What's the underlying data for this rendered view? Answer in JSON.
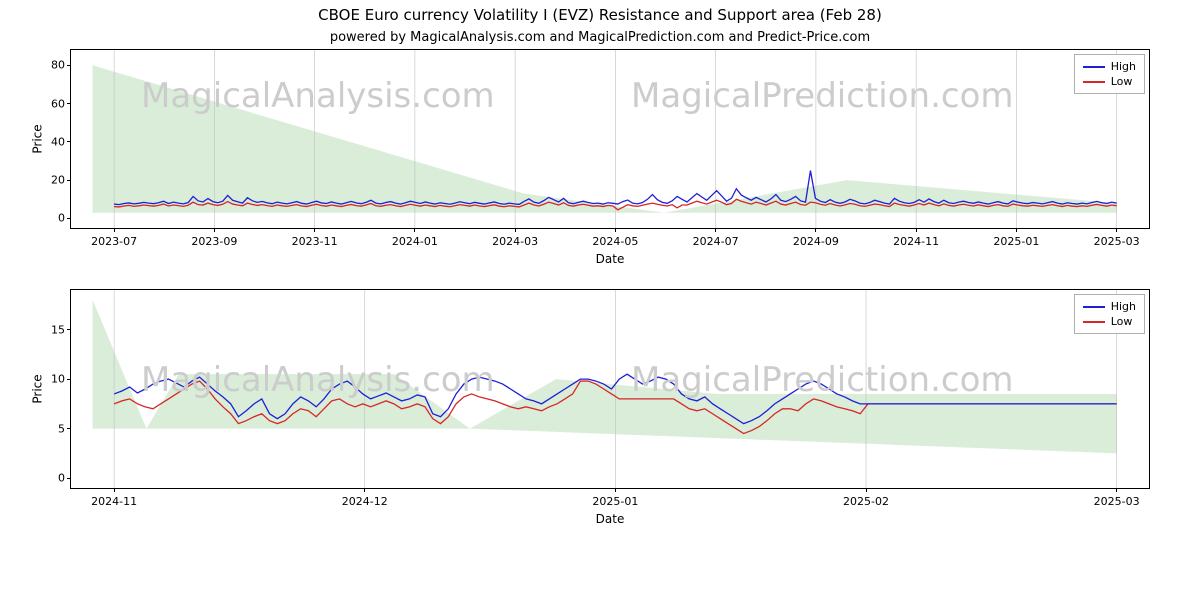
{
  "title": "CBOE Euro currency Volatility I (EVZ) Resistance and Support area (Feb 28)",
  "subtitle": "powered by MagicalAnalysis.com and MagicalPrediction.com and Predict-Price.com",
  "legend": {
    "high": "High",
    "low": "Low"
  },
  "colors": {
    "high_line": "#1f1fd6",
    "low_line": "#d62728",
    "grid": "#bfbfbf",
    "border": "#000000",
    "shade": "#c9e5c9",
    "watermark": "#cccccc",
    "background": "#ffffff"
  },
  "watermarks": {
    "top_left": "MagicalAnalysis.com",
    "top_right": "MagicalPrediction.com",
    "bottom_left": "MagicalAnalysis.com",
    "bottom_right": "MagicalPrediction.com"
  },
  "axis_labels": {
    "x": "Date",
    "y": "Price"
  },
  "chart_top": {
    "type": "line",
    "y_lim": [
      -5,
      88
    ],
    "y_ticks": [
      0,
      20,
      40,
      60,
      80
    ],
    "x_ticks": [
      "2023-07",
      "2023-09",
      "2023-11",
      "2024-01",
      "2024-03",
      "2024-05",
      "2024-07",
      "2024-09",
      "2024-11",
      "2025-01",
      "2025-03"
    ],
    "x_range_days": 620,
    "shade_polygons": [
      {
        "points": [
          [
            0.02,
            80
          ],
          [
            0.02,
            3
          ],
          [
            0.55,
            3
          ],
          [
            0.42,
            13
          ]
        ]
      },
      {
        "points": [
          [
            0.55,
            3
          ],
          [
            0.97,
            3
          ],
          [
            0.97,
            8
          ],
          [
            0.72,
            20
          ]
        ]
      }
    ],
    "series": {
      "high": [
        7.5,
        7.2,
        7.8,
        8.1,
        7.6,
        7.9,
        8.4,
        8.0,
        7.7,
        8.2,
        9.0,
        7.8,
        8.5,
        8.0,
        7.6,
        8.3,
        11.5,
        9.2,
        8.6,
        10.4,
        8.8,
        8.2,
        9.0,
        12.0,
        9.5,
        8.7,
        8.0,
        10.8,
        9.2,
        8.4,
        8.9,
        8.1,
        7.7,
        8.5,
        8.0,
        7.6,
        8.2,
        8.8,
        7.9,
        7.5,
        8.3,
        9.0,
        8.1,
        7.8,
        8.6,
        8.0,
        7.5,
        8.2,
        8.9,
        8.1,
        7.7,
        8.4,
        9.5,
        8.0,
        7.6,
        8.3,
        8.8,
        8.0,
        7.5,
        8.2,
        9.0,
        8.4,
        7.8,
        8.6,
        8.0,
        7.5,
        8.2,
        7.8,
        7.4,
        8.0,
        8.7,
        8.2,
        7.7,
        8.4,
        7.9,
        7.5,
        8.1,
        8.6,
        7.8,
        7.4,
        8.0,
        7.6,
        7.3,
        8.9,
        10.2,
        8.5,
        7.9,
        9.3,
        11.0,
        9.8,
        8.6,
        10.5,
        8.2,
        7.7,
        8.4,
        9.0,
        8.3,
        7.8,
        8.0,
        7.5,
        8.2,
        7.9,
        7.5,
        8.8,
        9.6,
        8.0,
        7.6,
        8.3,
        10.0,
        12.5,
        9.8,
        8.4,
        7.9,
        9.2,
        11.5,
        10.0,
        8.6,
        10.8,
        13.0,
        11.2,
        9.5,
        12.0,
        14.5,
        11.8,
        9.0,
        10.5,
        15.5,
        12.2,
        10.8,
        9.5,
        11.0,
        9.8,
        8.6,
        10.2,
        12.5,
        9.5,
        8.8,
        10.0,
        11.5,
        9.2,
        8.5,
        25.0,
        10.5,
        9.0,
        8.3,
        9.8,
        8.5,
        7.9,
        8.6,
        10.0,
        9.2,
        8.0,
        7.6,
        8.3,
        9.5,
        8.8,
        8.0,
        7.5,
        10.5,
        9.0,
        8.2,
        7.8,
        8.4,
        9.8,
        8.5,
        10.2,
        8.8,
        8.0,
        9.5,
        8.2,
        7.8,
        8.5,
        9.0,
        8.3,
        7.9,
        8.6,
        8.0,
        7.5,
        8.2,
        8.8,
        8.0,
        7.6,
        9.2,
        8.5,
        8.0,
        7.7,
        8.3,
        8.0,
        7.6,
        8.2,
        8.8,
        8.0,
        7.5,
        8.2,
        7.8,
        7.5,
        8.0,
        7.6,
        8.3,
        8.9,
        8.2,
        7.8,
        8.5,
        8.0
      ],
      "low": [
        6.2,
        6.0,
        6.5,
        6.8,
        6.3,
        6.6,
        7.0,
        6.7,
        6.4,
        6.8,
        7.5,
        6.5,
        7.0,
        6.7,
        6.3,
        6.9,
        8.5,
        7.2,
        7.0,
        8.0,
        7.2,
        6.8,
        7.4,
        8.8,
        7.5,
        7.0,
        6.6,
        8.0,
        7.3,
        6.8,
        7.2,
        6.7,
        6.3,
        7.0,
        6.6,
        6.3,
        6.8,
        7.2,
        6.5,
        6.2,
        6.9,
        7.4,
        6.7,
        6.4,
        7.0,
        6.6,
        6.2,
        6.8,
        7.3,
        6.7,
        6.4,
        7.0,
        7.8,
        6.6,
        6.3,
        6.9,
        7.2,
        6.6,
        6.2,
        6.8,
        7.4,
        6.9,
        6.4,
        7.0,
        6.6,
        6.2,
        6.8,
        6.4,
        6.1,
        6.6,
        7.2,
        6.8,
        6.4,
        7.0,
        6.5,
        6.2,
        6.7,
        7.1,
        6.4,
        6.1,
        6.6,
        6.3,
        6.0,
        7.0,
        8.0,
        7.0,
        6.5,
        7.4,
        8.5,
        7.8,
        7.0,
        8.2,
        6.8,
        6.4,
        7.0,
        7.4,
        6.9,
        6.4,
        6.6,
        6.2,
        6.8,
        6.5,
        4.5,
        5.8,
        7.2,
        6.6,
        6.3,
        6.9,
        7.5,
        8.0,
        7.4,
        6.9,
        6.5,
        7.2,
        5.5,
        7.0,
        7.0,
        8.0,
        9.0,
        8.2,
        7.5,
        8.5,
        9.5,
        8.5,
        7.2,
        7.8,
        10.0,
        9.0,
        8.2,
        7.5,
        8.5,
        7.8,
        7.0,
        8.0,
        9.0,
        7.5,
        7.0,
        7.8,
        8.5,
        7.3,
        6.9,
        8.5,
        8.2,
        7.4,
        6.9,
        7.8,
        7.0,
        6.5,
        7.1,
        7.8,
        7.4,
        6.6,
        6.3,
        6.9,
        7.5,
        7.2,
        6.6,
        6.2,
        8.0,
        7.3,
        6.8,
        6.4,
        7.0,
        7.8,
        7.0,
        8.0,
        7.2,
        6.6,
        7.6,
        6.8,
        6.4,
        7.0,
        7.4,
        6.9,
        6.5,
        7.1,
        6.6,
        6.2,
        6.8,
        7.2,
        6.6,
        6.3,
        7.5,
        7.0,
        6.6,
        6.4,
        6.9,
        6.6,
        6.3,
        6.8,
        7.2,
        6.6,
        6.2,
        6.8,
        6.4,
        6.2,
        6.6,
        6.3,
        6.9,
        7.3,
        6.8,
        6.4,
        7.0,
        6.6
      ]
    }
  },
  "chart_bottom": {
    "type": "line",
    "y_lim": [
      -1,
      19
    ],
    "y_ticks": [
      0,
      5,
      10,
      15
    ],
    "x_ticks": [
      "2024-11",
      "2024-12",
      "2025-01",
      "2025-02",
      "2025-03"
    ],
    "shade_polygons": [
      {
        "points": [
          [
            0.02,
            18
          ],
          [
            0.02,
            5
          ],
          [
            0.07,
            5
          ]
        ]
      },
      {
        "points": [
          [
            0.07,
            5
          ],
          [
            0.37,
            5
          ],
          [
            0.3,
            10.5
          ],
          [
            0.1,
            10.5
          ]
        ]
      },
      {
        "points": [
          [
            0.37,
            5
          ],
          [
            0.97,
            2.5
          ],
          [
            0.97,
            8.5
          ],
          [
            0.6,
            8.5
          ],
          [
            0.45,
            10
          ]
        ]
      }
    ],
    "series": {
      "high": [
        8.5,
        8.8,
        9.2,
        8.6,
        9.0,
        9.5,
        9.8,
        10.0,
        9.6,
        9.2,
        9.8,
        10.2,
        9.5,
        8.8,
        8.2,
        7.5,
        6.2,
        6.8,
        7.5,
        8.0,
        6.5,
        6.0,
        6.5,
        7.5,
        8.2,
        7.8,
        7.2,
        8.0,
        9.0,
        9.5,
        9.8,
        9.2,
        8.5,
        8.0,
        8.3,
        8.6,
        8.2,
        7.8,
        8.0,
        8.4,
        8.2,
        6.5,
        6.2,
        7.0,
        8.5,
        9.5,
        10.0,
        10.2,
        10.0,
        9.8,
        9.5,
        9.0,
        8.5,
        8.0,
        7.8,
        7.5,
        8.0,
        8.5,
        9.0,
        9.5,
        10.0,
        10.0,
        9.8,
        9.5,
        9.0,
        10.0,
        10.5,
        10.0,
        9.5,
        9.8,
        10.2,
        10.0,
        9.5,
        8.5,
        8.0,
        7.8,
        8.2,
        7.5,
        7.0,
        6.5,
        6.0,
        5.5,
        5.8,
        6.2,
        6.8,
        7.5,
        8.0,
        8.5,
        9.0,
        9.5,
        9.8,
        9.5,
        9.0,
        8.5,
        8.2,
        7.8,
        7.5,
        7.5,
        7.5,
        7.5,
        7.5,
        7.5,
        7.5,
        7.5,
        7.5,
        7.5,
        7.5,
        7.5,
        7.5,
        7.5,
        7.5,
        7.5,
        7.5,
        7.5,
        7.5,
        7.5,
        7.5,
        7.5,
        7.5,
        7.5,
        7.5,
        7.5,
        7.5,
        7.5,
        7.5,
        7.5,
        7.5,
        7.5,
        7.5,
        7.5
      ],
      "low": [
        7.5,
        7.8,
        8.0,
        7.5,
        7.2,
        7.0,
        7.5,
        8.0,
        8.5,
        9.0,
        9.5,
        9.8,
        9.0,
        8.0,
        7.2,
        6.5,
        5.5,
        5.8,
        6.2,
        6.5,
        5.8,
        5.5,
        5.8,
        6.5,
        7.0,
        6.8,
        6.2,
        7.0,
        7.8,
        8.0,
        7.5,
        7.2,
        7.5,
        7.2,
        7.5,
        7.8,
        7.5,
        7.0,
        7.2,
        7.5,
        7.2,
        6.0,
        5.5,
        6.2,
        7.5,
        8.2,
        8.5,
        8.2,
        8.0,
        7.8,
        7.5,
        7.2,
        7.0,
        7.2,
        7.0,
        6.8,
        7.2,
        7.5,
        8.0,
        8.5,
        9.8,
        9.8,
        9.5,
        9.0,
        8.5,
        8.0,
        8.0,
        8.0,
        8.0,
        8.0,
        8.0,
        8.0,
        8.0,
        7.5,
        7.0,
        6.8,
        7.0,
        6.5,
        6.0,
        5.5,
        5.0,
        4.5,
        4.8,
        5.2,
        5.8,
        6.5,
        7.0,
        7.0,
        6.8,
        7.5,
        8.0,
        7.8,
        7.5,
        7.2,
        7.0,
        6.8,
        6.5,
        7.5,
        7.5,
        7.5,
        7.5,
        7.5,
        7.5,
        7.5,
        7.5,
        7.5,
        7.5,
        7.5,
        7.5,
        7.5,
        7.5,
        7.5,
        7.5,
        7.5,
        7.5,
        7.5,
        7.5,
        7.5,
        7.5,
        7.5,
        7.5,
        7.5,
        7.5,
        7.5,
        7.5,
        7.5,
        7.5,
        7.5,
        7.5,
        7.5
      ]
    }
  }
}
